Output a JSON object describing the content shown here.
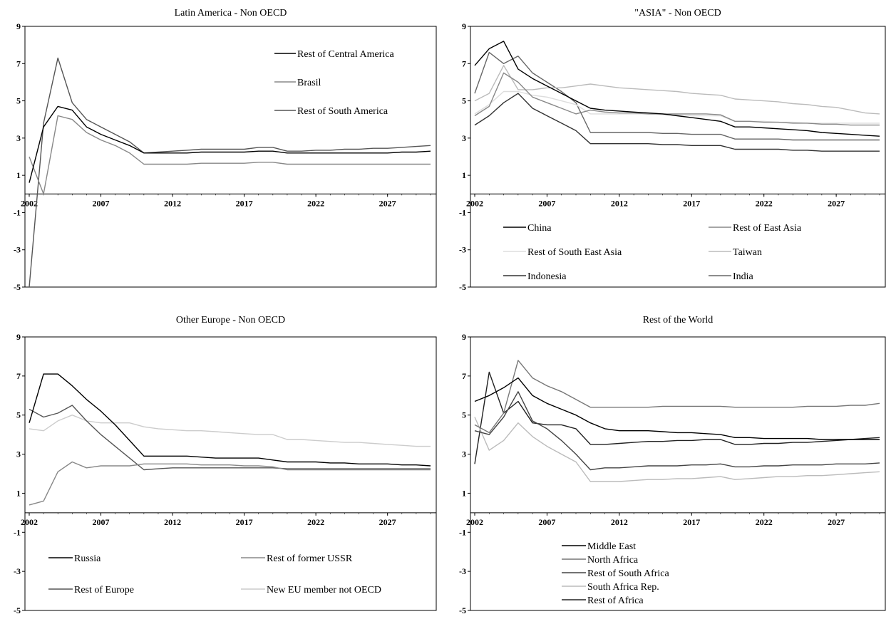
{
  "chart_data": [
    {
      "type": "line",
      "title": "Latin America - Non OECD",
      "x": [
        2002,
        2003,
        2004,
        2005,
        2006,
        2007,
        2008,
        2009,
        2010,
        2011,
        2012,
        2013,
        2014,
        2015,
        2016,
        2017,
        2018,
        2019,
        2020,
        2021,
        2022,
        2023,
        2024,
        2025,
        2026,
        2027,
        2028,
        2029,
        2030
      ],
      "xticks": [
        "2002",
        "2007",
        "2012",
        "2017",
        "2022",
        "2027"
      ],
      "ylim": [
        -5,
        9
      ],
      "yticks": [
        "9",
        "7",
        "5",
        "3",
        "1",
        "-1",
        "-3",
        "-5"
      ],
      "legend_position": "top-right",
      "series": [
        {
          "name": "Rest of Central America",
          "color": "#000000",
          "values": [
            0.6,
            3.6,
            4.7,
            4.5,
            3.6,
            3.2,
            2.9,
            2.6,
            2.2,
            2.2,
            2.2,
            2.2,
            2.25,
            2.25,
            2.25,
            2.25,
            2.3,
            2.3,
            2.2,
            2.2,
            2.2,
            2.2,
            2.2,
            2.2,
            2.2,
            2.2,
            2.25,
            2.25,
            2.3
          ]
        },
        {
          "name": "Brasil",
          "color": "#888888",
          "values": [
            2.0,
            0.0,
            4.2,
            4.0,
            3.3,
            2.9,
            2.6,
            2.2,
            1.6,
            1.6,
            1.6,
            1.6,
            1.65,
            1.65,
            1.65,
            1.65,
            1.7,
            1.7,
            1.6,
            1.6,
            1.6,
            1.6,
            1.6,
            1.6,
            1.6,
            1.6,
            1.6,
            1.6,
            1.6
          ]
        },
        {
          "name": "Rest of South America",
          "color": "#555555",
          "values": [
            -5.0,
            3.8,
            7.3,
            4.9,
            4.0,
            3.6,
            3.2,
            2.8,
            2.2,
            2.25,
            2.3,
            2.35,
            2.4,
            2.4,
            2.4,
            2.4,
            2.5,
            2.5,
            2.3,
            2.3,
            2.35,
            2.35,
            2.4,
            2.4,
            2.45,
            2.45,
            2.5,
            2.55,
            2.6
          ]
        }
      ]
    },
    {
      "type": "line",
      "title": "\"ASIA\" - Non OECD",
      "x": [
        2002,
        2003,
        2004,
        2005,
        2006,
        2007,
        2008,
        2009,
        2010,
        2011,
        2012,
        2013,
        2014,
        2015,
        2016,
        2017,
        2018,
        2019,
        2020,
        2021,
        2022,
        2023,
        2024,
        2025,
        2026,
        2027,
        2028,
        2029,
        2030
      ],
      "xticks": [
        "2002",
        "2007",
        "2012",
        "2017",
        "2022",
        "2027"
      ],
      "ylim": [
        -5,
        9
      ],
      "yticks": [
        "9",
        "7",
        "5",
        "3",
        "1",
        "-1",
        "-3",
        "-5"
      ],
      "legend_position": "bottom",
      "series": [
        {
          "name": "China",
          "color": "#000000",
          "values": [
            6.9,
            7.8,
            8.2,
            6.7,
            6.2,
            5.8,
            5.4,
            5.0,
            4.6,
            4.5,
            4.45,
            4.4,
            4.35,
            4.3,
            4.2,
            4.1,
            4.0,
            3.9,
            3.6,
            3.6,
            3.55,
            3.5,
            3.45,
            3.4,
            3.3,
            3.25,
            3.2,
            3.15,
            3.1
          ]
        },
        {
          "name": "Rest of East Asia",
          "color": "#888888",
          "values": [
            4.2,
            4.7,
            6.5,
            6.0,
            5.2,
            4.9,
            4.6,
            4.3,
            4.5,
            4.4,
            4.35,
            4.35,
            4.3,
            4.3,
            4.3,
            4.3,
            4.3,
            4.25,
            3.9,
            3.9,
            3.85,
            3.85,
            3.8,
            3.8,
            3.75,
            3.75,
            3.7,
            3.7,
            3.7
          ]
        },
        {
          "name": "Rest of South East Asia",
          "color": "#dddddd",
          "values": [
            4.3,
            4.8,
            5.5,
            5.5,
            5.3,
            5.2,
            5.0,
            4.8,
            4.3,
            4.3,
            4.3,
            4.3,
            4.3,
            4.25,
            4.25,
            4.2,
            4.2,
            4.2,
            3.9,
            3.9,
            3.9,
            3.85,
            3.85,
            3.8,
            3.8,
            3.8,
            3.8,
            3.8,
            3.8
          ]
        },
        {
          "name": "Taiwan",
          "color": "#bbbbbb",
          "values": [
            5.0,
            5.4,
            6.9,
            5.6,
            5.6,
            5.7,
            5.7,
            5.8,
            5.9,
            5.8,
            5.7,
            5.65,
            5.6,
            5.55,
            5.5,
            5.4,
            5.35,
            5.3,
            5.1,
            5.05,
            5.0,
            4.95,
            4.85,
            4.8,
            4.7,
            4.65,
            4.5,
            4.35,
            4.3
          ]
        },
        {
          "name": "Indonesia",
          "color": "#333333",
          "values": [
            3.7,
            4.2,
            4.9,
            5.4,
            4.6,
            4.2,
            3.8,
            3.4,
            2.7,
            2.7,
            2.7,
            2.7,
            2.7,
            2.65,
            2.65,
            2.6,
            2.6,
            2.6,
            2.4,
            2.4,
            2.4,
            2.4,
            2.35,
            2.35,
            2.3,
            2.3,
            2.3,
            2.3,
            2.3
          ]
        },
        {
          "name": "India",
          "color": "#666666",
          "values": [
            5.4,
            7.6,
            7.0,
            7.4,
            6.5,
            6.0,
            5.5,
            4.9,
            3.3,
            3.3,
            3.3,
            3.3,
            3.3,
            3.25,
            3.25,
            3.2,
            3.2,
            3.2,
            2.95,
            2.95,
            2.95,
            2.95,
            2.9,
            2.9,
            2.9,
            2.9,
            2.9,
            2.9,
            2.9
          ]
        }
      ]
    },
    {
      "type": "line",
      "title": "Other Europe - Non OECD",
      "x": [
        2002,
        2003,
        2004,
        2005,
        2006,
        2007,
        2008,
        2009,
        2010,
        2011,
        2012,
        2013,
        2014,
        2015,
        2016,
        2017,
        2018,
        2019,
        2020,
        2021,
        2022,
        2023,
        2024,
        2025,
        2026,
        2027,
        2028,
        2029,
        2030
      ],
      "xticks": [
        "2002",
        "2007",
        "2012",
        "2017",
        "2022",
        "2027"
      ],
      "ylim": [
        -5,
        9
      ],
      "yticks": [
        "9",
        "7",
        "5",
        "3",
        "1",
        "-1",
        "-3",
        "-5"
      ],
      "legend_position": "bottom",
      "series": [
        {
          "name": "Russia",
          "color": "#000000",
          "values": [
            4.6,
            7.1,
            7.1,
            6.5,
            5.8,
            5.2,
            4.5,
            3.7,
            2.9,
            2.9,
            2.9,
            2.9,
            2.85,
            2.8,
            2.8,
            2.8,
            2.8,
            2.7,
            2.6,
            2.6,
            2.6,
            2.55,
            2.55,
            2.5,
            2.5,
            2.5,
            2.45,
            2.45,
            2.4
          ]
        },
        {
          "name": "Rest of former USSR",
          "color": "#888888",
          "values": [
            0.4,
            0.6,
            2.1,
            2.6,
            2.3,
            2.4,
            2.4,
            2.4,
            2.5,
            2.5,
            2.5,
            2.5,
            2.45,
            2.45,
            2.45,
            2.4,
            2.4,
            2.35,
            2.2,
            2.2,
            2.2,
            2.2,
            2.2,
            2.2,
            2.2,
            2.2,
            2.2,
            2.2,
            2.2
          ]
        },
        {
          "name": "Rest of Europe",
          "color": "#555555",
          "values": [
            5.3,
            4.9,
            5.1,
            5.5,
            4.7,
            4.0,
            3.4,
            2.8,
            2.2,
            2.25,
            2.3,
            2.3,
            2.3,
            2.3,
            2.3,
            2.3,
            2.3,
            2.3,
            2.25,
            2.25,
            2.25,
            2.25,
            2.25,
            2.25,
            2.25,
            2.25,
            2.25,
            2.25,
            2.25
          ]
        },
        {
          "name": "New EU member not OECD",
          "color": "#cccccc",
          "values": [
            4.3,
            4.2,
            4.7,
            5.0,
            4.7,
            4.6,
            4.6,
            4.6,
            4.4,
            4.3,
            4.25,
            4.2,
            4.2,
            4.15,
            4.1,
            4.05,
            4.0,
            4.0,
            3.75,
            3.75,
            3.7,
            3.65,
            3.6,
            3.6,
            3.55,
            3.5,
            3.45,
            3.4,
            3.4
          ]
        }
      ]
    },
    {
      "type": "line",
      "title": "Rest of the World",
      "x": [
        2002,
        2003,
        2004,
        2005,
        2006,
        2007,
        2008,
        2009,
        2010,
        2011,
        2012,
        2013,
        2014,
        2015,
        2016,
        2017,
        2018,
        2019,
        2020,
        2021,
        2022,
        2023,
        2024,
        2025,
        2026,
        2027,
        2028,
        2029,
        2030
      ],
      "xticks": [
        "2002",
        "2007",
        "2012",
        "2017",
        "2022",
        "2027"
      ],
      "ylim": [
        -5,
        9
      ],
      "yticks": [
        "9",
        "7",
        "5",
        "3",
        "1",
        "-1",
        "-3",
        "-5"
      ],
      "legend_position": "bottom",
      "series": [
        {
          "name": "Middle East",
          "color": "#000000",
          "values": [
            5.7,
            6.0,
            6.4,
            6.9,
            6.0,
            5.6,
            5.3,
            5.0,
            4.6,
            4.3,
            4.2,
            4.2,
            4.2,
            4.15,
            4.1,
            4.1,
            4.05,
            4.0,
            3.85,
            3.85,
            3.8,
            3.8,
            3.8,
            3.8,
            3.75,
            3.75,
            3.75,
            3.75,
            3.75
          ]
        },
        {
          "name": "North Africa",
          "color": "#777777",
          "values": [
            4.5,
            4.1,
            5.1,
            7.8,
            6.9,
            6.5,
            6.2,
            5.8,
            5.4,
            5.4,
            5.4,
            5.4,
            5.4,
            5.45,
            5.45,
            5.45,
            5.45,
            5.45,
            5.4,
            5.4,
            5.4,
            5.4,
            5.4,
            5.45,
            5.45,
            5.45,
            5.5,
            5.5,
            5.6
          ]
        },
        {
          "name": "Rest of South Africa",
          "color": "#444444",
          "values": [
            4.2,
            4.0,
            4.9,
            6.2,
            4.7,
            4.3,
            3.7,
            3.0,
            2.2,
            2.3,
            2.3,
            2.35,
            2.4,
            2.4,
            2.4,
            2.45,
            2.45,
            2.5,
            2.35,
            2.35,
            2.4,
            2.4,
            2.45,
            2.45,
            2.45,
            2.5,
            2.5,
            2.5,
            2.55
          ]
        },
        {
          "name": "South Africa Rep.",
          "color": "#bbbbbb",
          "values": [
            4.9,
            3.2,
            3.7,
            4.6,
            3.9,
            3.4,
            3.0,
            2.6,
            1.6,
            1.6,
            1.6,
            1.65,
            1.7,
            1.7,
            1.75,
            1.75,
            1.8,
            1.85,
            1.7,
            1.75,
            1.8,
            1.85,
            1.85,
            1.9,
            1.9,
            1.95,
            2.0,
            2.05,
            2.1
          ]
        },
        {
          "name": "Rest of Africa",
          "color": "#222222",
          "values": [
            2.5,
            7.2,
            5.1,
            5.7,
            4.6,
            4.5,
            4.5,
            4.3,
            3.5,
            3.5,
            3.55,
            3.6,
            3.65,
            3.65,
            3.7,
            3.7,
            3.75,
            3.75,
            3.5,
            3.5,
            3.55,
            3.55,
            3.6,
            3.6,
            3.65,
            3.7,
            3.75,
            3.8,
            3.85
          ]
        }
      ]
    }
  ]
}
